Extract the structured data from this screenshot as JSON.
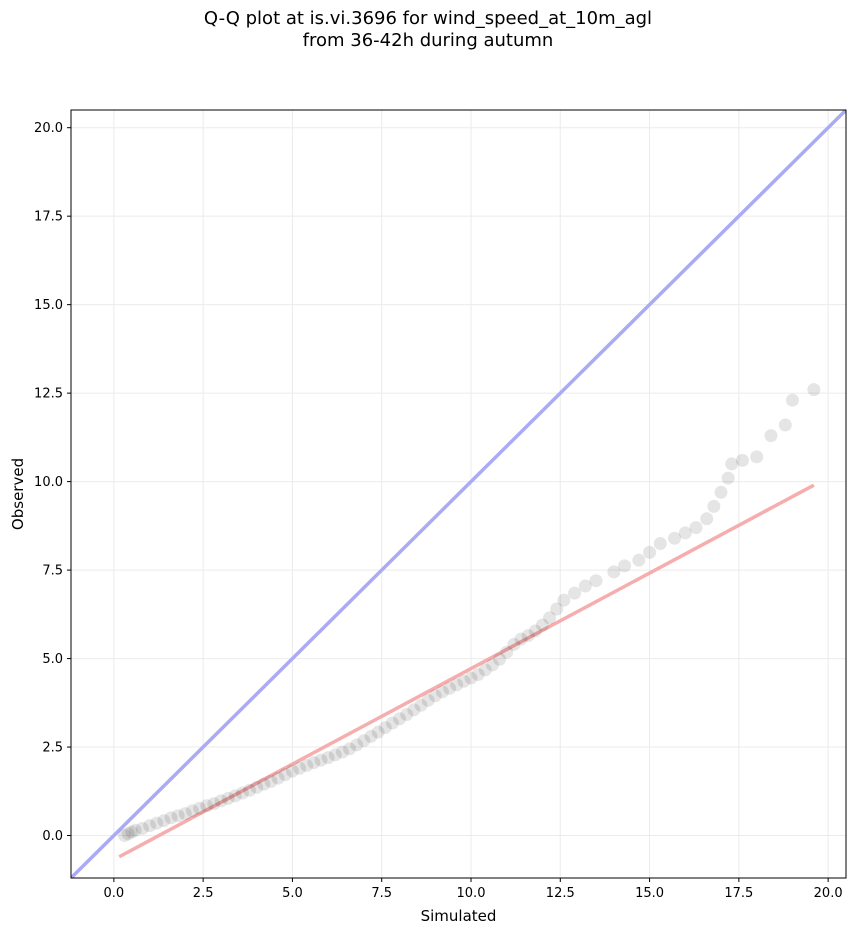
{
  "chart_data": {
    "type": "scatter",
    "title_lines": [
      "Q-Q plot at is.vi.3696 for wind_speed_at_10m_agl",
      "from 36-42h during autumn"
    ],
    "xlabel": "Simulated",
    "ylabel": "Observed",
    "xlim": [
      -1.2,
      20.5
    ],
    "ylim": [
      -1.2,
      20.5
    ],
    "xticks": [
      0.0,
      2.5,
      5.0,
      7.5,
      10.0,
      12.5,
      15.0,
      17.5,
      20.0
    ],
    "yticks": [
      0.0,
      2.5,
      5.0,
      7.5,
      10.0,
      12.5,
      15.0,
      17.5,
      20.0
    ],
    "xtick_labels": [
      "0.0",
      "2.5",
      "5.0",
      "7.5",
      "10.0",
      "12.5",
      "15.0",
      "17.5",
      "20.0"
    ],
    "ytick_labels": [
      "0.0",
      "2.5",
      "5.0",
      "7.5",
      "10.0",
      "12.5",
      "15.0",
      "17.5",
      "20.0"
    ],
    "grid": true,
    "reference_line": {
      "from": [
        -1.2,
        -1.2
      ],
      "to": [
        20.5,
        20.5
      ],
      "color": "#aaaaf5"
    },
    "fit_line": {
      "from": [
        0.15,
        -0.6
      ],
      "to": [
        19.6,
        9.9
      ],
      "color": "#f5a9a9"
    },
    "points": [
      [
        0.3,
        0.0
      ],
      [
        0.4,
        0.05
      ],
      [
        0.5,
        0.1
      ],
      [
        0.6,
        0.15
      ],
      [
        0.8,
        0.2
      ],
      [
        1.0,
        0.28
      ],
      [
        1.2,
        0.35
      ],
      [
        1.4,
        0.42
      ],
      [
        1.6,
        0.5
      ],
      [
        1.8,
        0.56
      ],
      [
        2.0,
        0.62
      ],
      [
        2.2,
        0.7
      ],
      [
        2.4,
        0.77
      ],
      [
        2.6,
        0.84
      ],
      [
        2.8,
        0.9
      ],
      [
        3.0,
        0.98
      ],
      [
        3.2,
        1.05
      ],
      [
        3.4,
        1.12
      ],
      [
        3.6,
        1.2
      ],
      [
        3.8,
        1.28
      ],
      [
        4.0,
        1.36
      ],
      [
        4.2,
        1.45
      ],
      [
        4.4,
        1.53
      ],
      [
        4.6,
        1.62
      ],
      [
        4.8,
        1.72
      ],
      [
        5.0,
        1.82
      ],
      [
        5.2,
        1.9
      ],
      [
        5.4,
        1.98
      ],
      [
        5.6,
        2.06
      ],
      [
        5.8,
        2.13
      ],
      [
        6.0,
        2.2
      ],
      [
        6.2,
        2.28
      ],
      [
        6.4,
        2.36
      ],
      [
        6.6,
        2.45
      ],
      [
        6.8,
        2.56
      ],
      [
        7.0,
        2.68
      ],
      [
        7.2,
        2.8
      ],
      [
        7.4,
        2.92
      ],
      [
        7.6,
        3.05
      ],
      [
        7.8,
        3.18
      ],
      [
        8.0,
        3.3
      ],
      [
        8.2,
        3.42
      ],
      [
        8.4,
        3.55
      ],
      [
        8.6,
        3.68
      ],
      [
        8.8,
        3.82
      ],
      [
        9.0,
        3.95
      ],
      [
        9.2,
        4.06
      ],
      [
        9.4,
        4.16
      ],
      [
        9.6,
        4.26
      ],
      [
        9.8,
        4.36
      ],
      [
        10.0,
        4.45
      ],
      [
        10.2,
        4.55
      ],
      [
        10.4,
        4.68
      ],
      [
        10.6,
        4.82
      ],
      [
        10.8,
        4.98
      ],
      [
        11.0,
        5.18
      ],
      [
        11.2,
        5.4
      ],
      [
        11.4,
        5.55
      ],
      [
        11.6,
        5.65
      ],
      [
        11.8,
        5.78
      ],
      [
        12.0,
        5.95
      ],
      [
        12.2,
        6.15
      ],
      [
        12.4,
        6.4
      ],
      [
        12.6,
        6.65
      ],
      [
        12.9,
        6.85
      ],
      [
        13.2,
        7.05
      ],
      [
        13.5,
        7.2
      ],
      [
        14.0,
        7.45
      ],
      [
        14.3,
        7.62
      ],
      [
        14.7,
        7.78
      ],
      [
        15.0,
        8.0
      ],
      [
        15.3,
        8.25
      ],
      [
        15.7,
        8.4
      ],
      [
        16.0,
        8.55
      ],
      [
        16.3,
        8.7
      ],
      [
        16.6,
        8.95
      ],
      [
        16.8,
        9.3
      ],
      [
        17.0,
        9.7
      ],
      [
        17.2,
        10.1
      ],
      [
        17.3,
        10.5
      ],
      [
        17.6,
        10.6
      ],
      [
        18.0,
        10.7
      ],
      [
        18.4,
        11.3
      ],
      [
        18.8,
        11.6
      ],
      [
        19.0,
        12.3
      ],
      [
        19.6,
        12.6
      ]
    ],
    "point_color": "#000000"
  }
}
